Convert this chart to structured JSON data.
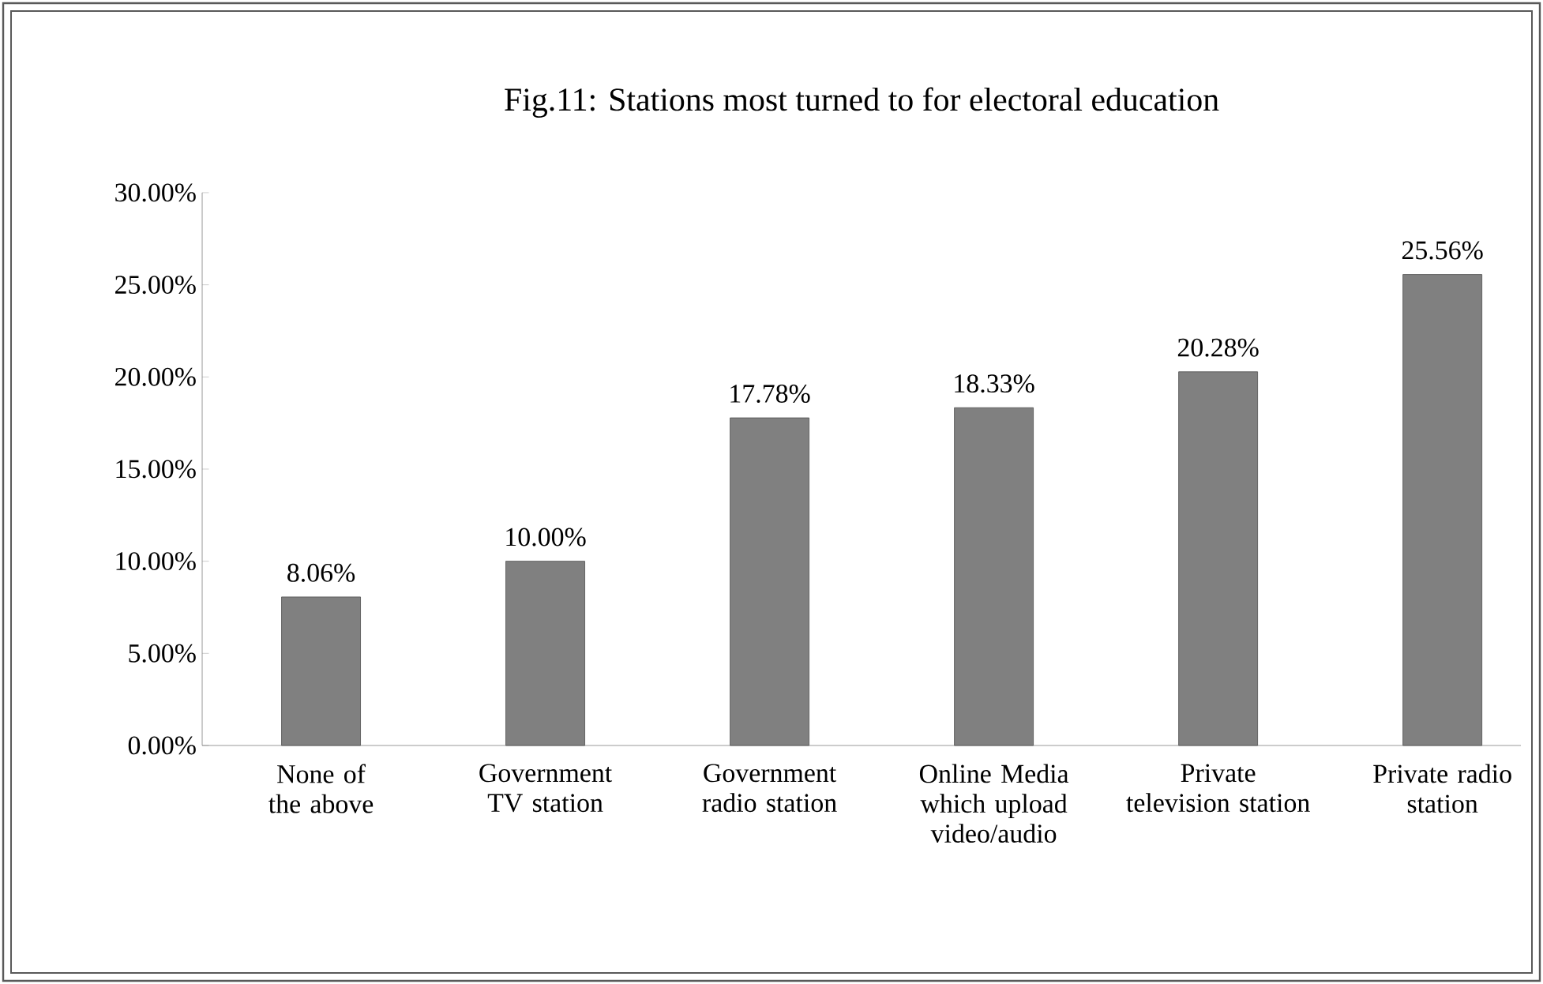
{
  "chart_data": {
    "type": "bar",
    "title": "Fig.11: Stations most turned to for electoral education",
    "categories": [
      "None of the above",
      "Government TV station",
      "Government radio station",
      "Online Media which upload video/audio",
      "Private television station",
      "Private radio station"
    ],
    "values": [
      8.06,
      10.0,
      17.78,
      18.33,
      20.28,
      25.56
    ],
    "value_labels": [
      "8.06%",
      "10.00%",
      "17.78%",
      "18.33%",
      "20.28%",
      "25.56%"
    ],
    "color": "#808080",
    "ylim": [
      0,
      30
    ],
    "yticks": [
      {
        "value": 0,
        "label": "0.00%"
      },
      {
        "value": 5,
        "label": "5.00%"
      },
      {
        "value": 10,
        "label": "10.00%"
      },
      {
        "value": 15,
        "label": "15.00%"
      },
      {
        "value": 20,
        "label": "20.00%"
      },
      {
        "value": 25,
        "label": "25.00%"
      },
      {
        "value": 30,
        "label": "30.00%"
      }
    ]
  }
}
